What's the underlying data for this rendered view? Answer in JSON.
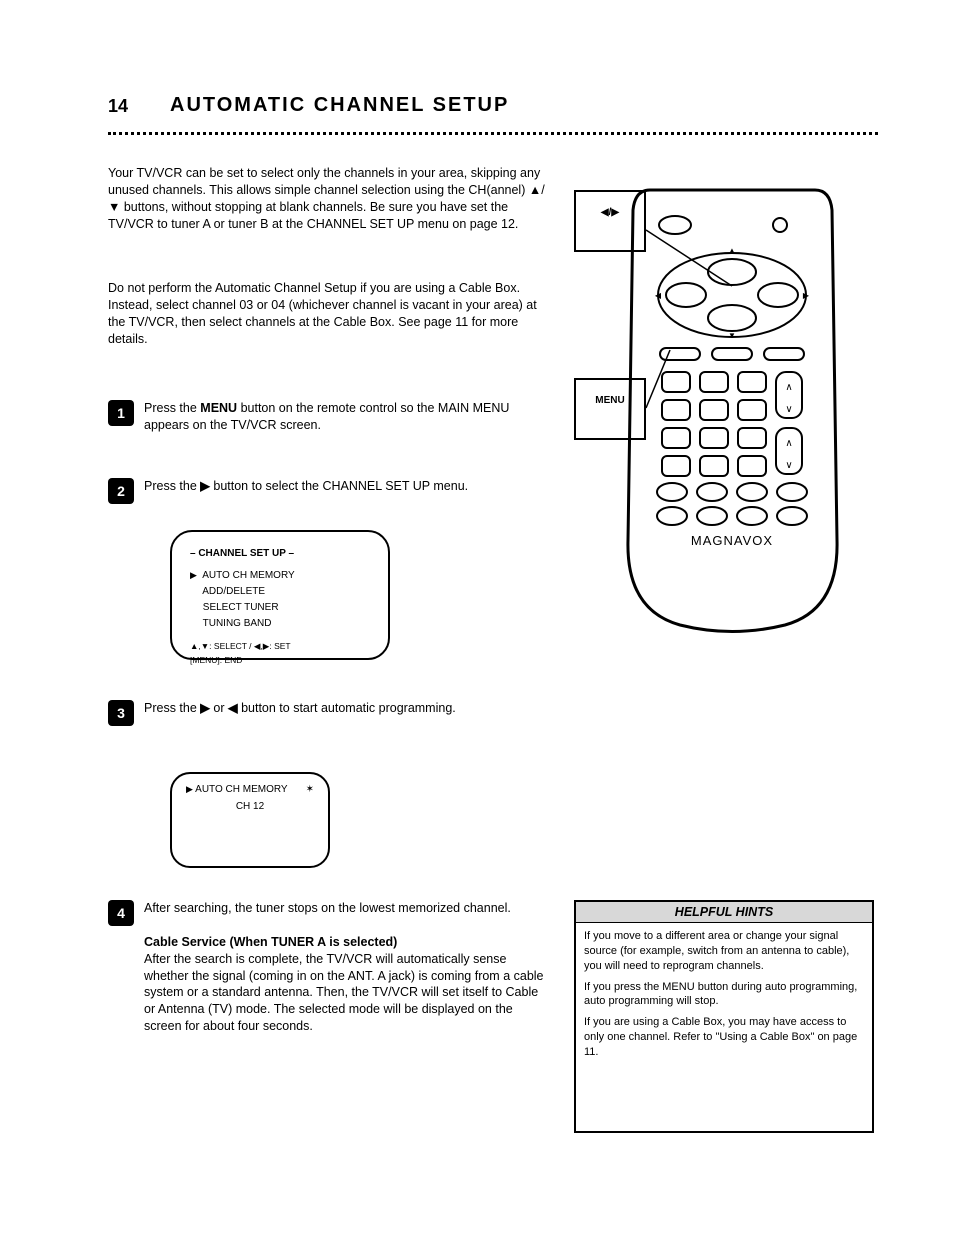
{
  "meta": {
    "page_number": "14",
    "title": "AUTOMATIC CHANNEL SETUP"
  },
  "intro": "Your TV/VCR can be set to select only the channels in your area, skipping any unused channels. This allows simple channel selection using the CH(annel) ▲/▼ buttons, without stopping at blank channels. Be sure you have set the TV/VCR to tuner A or tuner B at the CHANNEL SET UP menu on page 12.",
  "note": "Do not perform the Automatic Channel Setup if you are using a Cable Box. Instead, select channel 03 or 04 (whichever channel is vacant in your area) at the TV/VCR, then select channels at the Cable Box. See page 11 for more details.",
  "steps": [
    {
      "n": "1",
      "html": "Press the <b>MENU</b> button on the remote control so the MAIN MENU appears on the TV/VCR screen."
    },
    {
      "n": "2",
      "html": "Press the <b>▶</b> button to select the CHANNEL SET UP menu."
    },
    {
      "n": "3",
      "html": "Press the <b>▶</b> or <b>◀</b> button to start automatic programming."
    },
    {
      "n": "4",
      "html": "After searching, the tuner stops on the lowest memorized channel.<br><br><b>Cable Service (When TUNER A is selected)</b><br>After the search is complete, the TV/VCR will automatically sense whether the signal (coming in on the ANT. A jack) is coming from a cable system or a standard antenna. Then, the TV/VCR will set itself to Cable or Antenna (TV) mode. The selected mode will be displayed on the screen for about four seconds."
    }
  ],
  "screen1": {
    "items": [
      "AUTO CH MEMORY",
      "ADD/DELETE",
      "SELECT TUNER",
      "TUNING BAND"
    ],
    "hint": "▲,▼: SELECT / ◀,▶: SET\n[MENU]: END"
  },
  "screen2": {
    "left": "AUTO CH MEMORY",
    "right_icon": "✶",
    "line2": "CH  12"
  },
  "remote": {
    "brand": "MAGNAVOX",
    "callout_arrow": "◀/▶",
    "callout_menu": "MENU"
  },
  "hints": {
    "title": "HELPFUL HINTS",
    "body": "If you move to a different area or change your signal source (for example, switch from an antenna to cable), you will need to reprogram channels.\n\nIf you press the MENU button during auto programming, auto programming will stop.\n\nIf you are using a Cable Box, you may have access to only one channel. Refer to \"Using a Cable Box\" on page 11."
  },
  "colors": {
    "text": "#000000",
    "background": "#ffffff",
    "hint_header_bg": "#d8d8d8"
  }
}
